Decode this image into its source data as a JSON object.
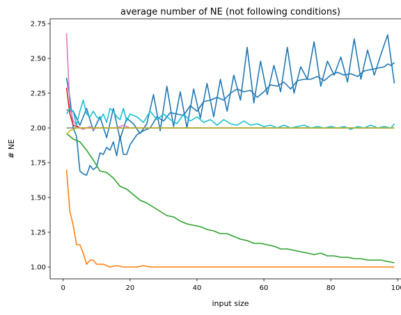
{
  "chart_data": {
    "type": "line",
    "title": "average number of NE (not following conditions)",
    "xlabel": "input size",
    "ylabel": "# NE",
    "xlim": [
      -3.9,
      103.9
    ],
    "ylim": [
      0.915,
      2.785
    ],
    "xticks": [
      0,
      20,
      40,
      60,
      80,
      100
    ],
    "yticks": [
      1.0,
      1.25,
      1.5,
      1.75,
      2.0,
      2.25,
      2.5,
      2.75
    ],
    "xtick_labels": [
      "0",
      "20",
      "40",
      "60",
      "80",
      "100"
    ],
    "ytick_labels": [
      "1.00",
      "1.25",
      "1.50",
      "1.75",
      "2.00",
      "2.25",
      "2.50",
      "2.75"
    ],
    "grid": false,
    "legend": null,
    "series": [
      {
        "color": "#1f77b4",
        "x": [
          1,
          2,
          3,
          4,
          5,
          6,
          7,
          8,
          9,
          10,
          11,
          12,
          13,
          14,
          15,
          16,
          17,
          18,
          19,
          20,
          22,
          24,
          26,
          28,
          30,
          32,
          34,
          36,
          38,
          40,
          42,
          44,
          46,
          48,
          50,
          52,
          54,
          56,
          58,
          60,
          62,
          64,
          66,
          68,
          70,
          72,
          74,
          76,
          78,
          80,
          82,
          84,
          86,
          88,
          90,
          92,
          94,
          96,
          97,
          98,
          99
        ],
        "y": [
          2.36,
          2.22,
          2.0,
          1.94,
          1.69,
          1.67,
          1.66,
          1.73,
          1.7,
          1.72,
          1.82,
          1.81,
          1.86,
          1.84,
          1.9,
          1.8,
          1.94,
          1.81,
          1.81,
          1.88,
          1.95,
          1.98,
          2.0,
          2.08,
          2.05,
          2.11,
          2.1,
          2.09,
          2.16,
          2.12,
          2.19,
          2.2,
          2.22,
          2.2,
          2.25,
          2.28,
          2.26,
          2.27,
          2.22,
          2.26,
          2.31,
          2.3,
          2.33,
          2.28,
          2.34,
          2.35,
          2.35,
          2.37,
          2.34,
          2.38,
          2.4,
          2.38,
          2.39,
          2.37,
          2.41,
          2.42,
          2.43,
          2.44,
          2.46,
          2.45,
          2.47
        ]
      },
      {
        "color": "#1f77b4",
        "x": [
          1,
          3,
          5,
          7,
          9,
          11,
          13,
          15,
          17,
          19,
          21,
          23,
          25,
          27,
          29,
          31,
          33,
          35,
          37,
          39,
          41,
          43,
          45,
          47,
          49,
          51,
          53,
          55,
          57,
          59,
          61,
          63,
          65,
          67,
          69,
          71,
          73,
          75,
          77,
          79,
          81,
          83,
          85,
          87,
          89,
          91,
          93,
          95,
          97,
          99
        ],
        "y": [
          2.13,
          2.12,
          2.02,
          2.14,
          1.98,
          2.08,
          1.93,
          2.14,
          1.92,
          2.07,
          2.03,
          1.96,
          2.03,
          2.24,
          1.98,
          2.3,
          2.01,
          2.26,
          2.0,
          2.28,
          2.07,
          2.32,
          2.08,
          2.35,
          2.12,
          2.38,
          2.2,
          2.58,
          2.18,
          2.48,
          2.24,
          2.45,
          2.26,
          2.58,
          2.25,
          2.44,
          2.35,
          2.62,
          2.3,
          2.48,
          2.38,
          2.51,
          2.33,
          2.64,
          2.35,
          2.56,
          2.38,
          2.53,
          2.67,
          2.32
        ]
      },
      {
        "color": "#ff7f0e",
        "x": [
          1,
          2,
          3,
          4,
          5,
          6,
          7,
          8,
          9,
          10,
          12,
          14,
          16,
          18,
          20,
          22,
          24,
          26,
          30,
          40,
          50,
          60,
          70,
          80,
          90,
          99
        ],
        "y": [
          1.7,
          1.4,
          1.3,
          1.16,
          1.16,
          1.1,
          1.02,
          1.05,
          1.05,
          1.02,
          1.02,
          1.0,
          1.01,
          1.0,
          1.0,
          1.0,
          1.01,
          1.0,
          1.0,
          1.0,
          1.0,
          1.0,
          1.0,
          1.0,
          1.0,
          1.0
        ]
      },
      {
        "color": "#2ca02c",
        "x": [
          1,
          3,
          5,
          7,
          9,
          11,
          13,
          15,
          17,
          19,
          21,
          23,
          25,
          27,
          29,
          31,
          33,
          35,
          37,
          39,
          41,
          43,
          45,
          47,
          49,
          51,
          53,
          55,
          57,
          59,
          61,
          63,
          65,
          67,
          69,
          71,
          73,
          75,
          77,
          79,
          81,
          83,
          85,
          87,
          89,
          91,
          93,
          95,
          97,
          99
        ],
        "y": [
          1.96,
          1.92,
          1.9,
          1.84,
          1.77,
          1.69,
          1.68,
          1.64,
          1.58,
          1.56,
          1.52,
          1.48,
          1.46,
          1.43,
          1.4,
          1.37,
          1.36,
          1.33,
          1.31,
          1.3,
          1.29,
          1.27,
          1.26,
          1.24,
          1.24,
          1.22,
          1.2,
          1.19,
          1.17,
          1.17,
          1.16,
          1.15,
          1.13,
          1.13,
          1.12,
          1.11,
          1.1,
          1.09,
          1.1,
          1.08,
          1.08,
          1.07,
          1.07,
          1.06,
          1.06,
          1.05,
          1.05,
          1.05,
          1.04,
          1.03
        ]
      },
      {
        "color": "#e377c2",
        "x": [
          1,
          2,
          3,
          4,
          5,
          6,
          7,
          8,
          9,
          10,
          12,
          14,
          16,
          18,
          20,
          24,
          30,
          40,
          50,
          60,
          70,
          80,
          90,
          99
        ],
        "y": [
          2.68,
          2.15,
          2.05,
          2.02,
          2.0,
          1.99,
          2.0,
          2.01,
          1.99,
          2.0,
          2.0,
          2.0,
          2.0,
          2.02,
          2.0,
          2.0,
          2.0,
          2.0,
          2.0,
          2.0,
          2.0,
          2.0,
          2.0,
          2.0
        ]
      },
      {
        "color": "#d62728",
        "x": [
          1,
          2,
          3,
          4,
          5,
          6,
          8,
          10,
          14,
          20,
          30,
          40,
          50,
          60,
          70,
          80,
          90,
          99
        ],
        "y": [
          2.29,
          2.1,
          2.02,
          2.01,
          2.0,
          2.0,
          2.0,
          2.0,
          2.0,
          2.0,
          2.0,
          2.0,
          2.0,
          2.0,
          2.0,
          2.0,
          2.0,
          2.0
        ]
      },
      {
        "color": "#7f7f7f",
        "x": [
          1,
          3,
          5,
          10,
          20,
          30,
          40,
          50,
          60,
          70,
          80,
          90,
          99
        ],
        "y": [
          2.0,
          2.0,
          2.0,
          2.0,
          2.0,
          2.0,
          2.0,
          2.0,
          2.0,
          2.0,
          2.0,
          2.0,
          2.0
        ]
      },
      {
        "color": "#17becf",
        "x": [
          1,
          2,
          3,
          4,
          5,
          6,
          7,
          8,
          9,
          10,
          11,
          12,
          13,
          14,
          15,
          16,
          17,
          18,
          19,
          20,
          22,
          24,
          26,
          28,
          30,
          32,
          34,
          36,
          38,
          40,
          42,
          44,
          46,
          48,
          50,
          52,
          54,
          56,
          58,
          60,
          62,
          64,
          66,
          68,
          70,
          72,
          74,
          76,
          78,
          80,
          82,
          84,
          86,
          88,
          90,
          92,
          94,
          96,
          98,
          99
        ],
        "y": [
          2.1,
          2.14,
          2.12,
          2.02,
          2.12,
          2.2,
          2.1,
          2.08,
          2.12,
          2.08,
          2.06,
          2.1,
          2.04,
          2.14,
          2.12,
          2.08,
          2.06,
          2.14,
          2.05,
          2.1,
          2.08,
          2.04,
          2.12,
          2.06,
          2.1,
          2.06,
          2.03,
          2.1,
          2.05,
          2.08,
          2.04,
          2.06,
          2.02,
          2.06,
          2.03,
          2.02,
          2.05,
          2.02,
          2.03,
          2.01,
          2.02,
          2.0,
          2.02,
          2.0,
          2.01,
          2.02,
          2.0,
          2.01,
          2.0,
          2.01,
          2.0,
          2.01,
          1.99,
          2.01,
          2.0,
          2.02,
          2.0,
          2.01,
          2.0,
          2.03
        ]
      },
      {
        "color": "#bcbd22",
        "x": [
          1,
          2,
          3,
          4,
          5,
          10,
          20,
          30,
          40,
          50,
          60,
          70,
          80,
          90,
          99
        ],
        "y": [
          1.95,
          1.98,
          1.99,
          2.0,
          2.0,
          2.0,
          2.0,
          2.0,
          2.0,
          2.0,
          2.0,
          2.0,
          2.0,
          2.0,
          2.0
        ]
      }
    ]
  }
}
